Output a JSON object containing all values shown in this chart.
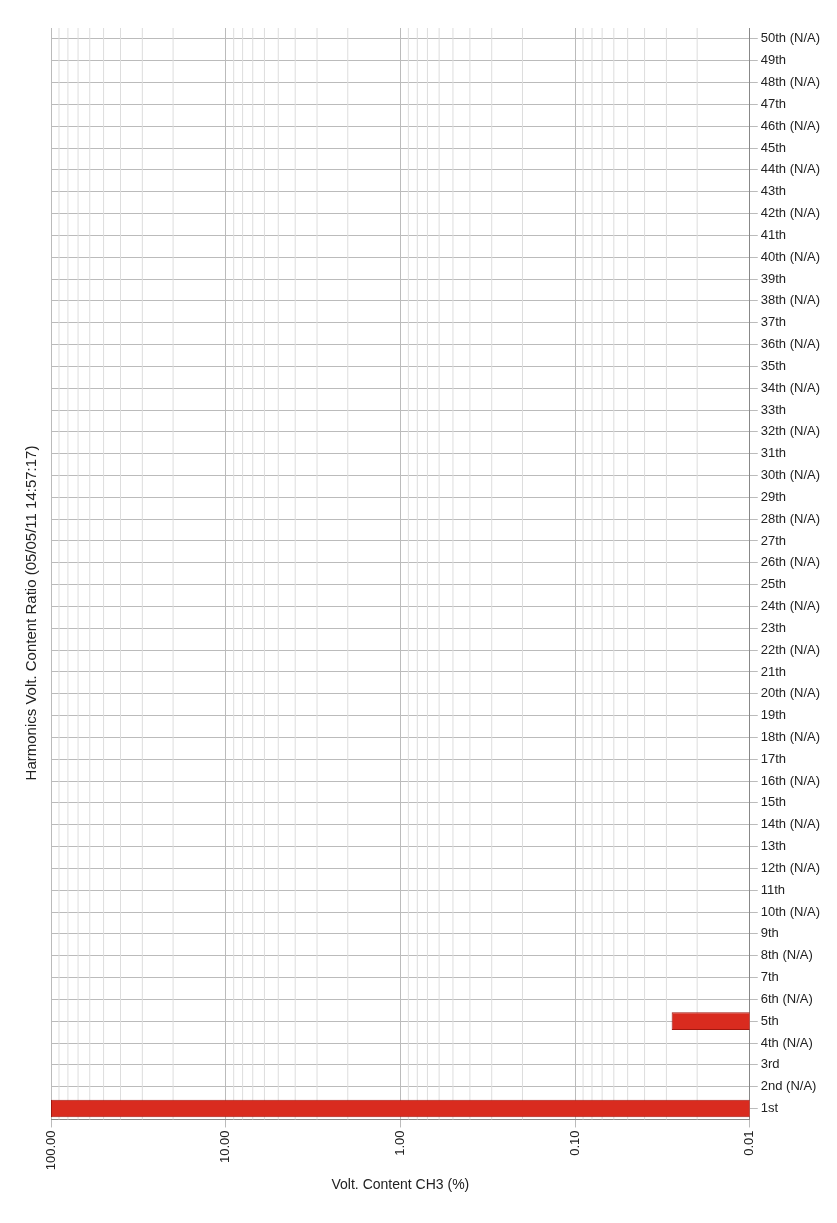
{
  "chart_data": {
    "type": "bar",
    "orientation": "horizontal",
    "title": "Harmonics Volt. Content Ratio (05/05/11 14:57:17)",
    "xlabel": "Volt. Content CH3 (%)",
    "categories": [
      "50th (N/A)",
      "49th",
      "48th (N/A)",
      "47th",
      "46th (N/A)",
      "45th",
      "44th (N/A)",
      "43th",
      "42th (N/A)",
      "41th",
      "40th (N/A)",
      "39th",
      "38th (N/A)",
      "37th",
      "36th (N/A)",
      "35th",
      "34th (N/A)",
      "33th",
      "32th (N/A)",
      "31th",
      "30th (N/A)",
      "29th",
      "28th (N/A)",
      "27th",
      "26th (N/A)",
      "25th",
      "24th (N/A)",
      "23th",
      "22th (N/A)",
      "21th",
      "20th (N/A)",
      "19th",
      "18th (N/A)",
      "17th",
      "16th (N/A)",
      "15th",
      "14th (N/A)",
      "13th",
      "12th (N/A)",
      "11th",
      "10th (N/A)",
      "9th",
      "8th (N/A)",
      "7th",
      "6th (N/A)",
      "5th",
      "4th (N/A)",
      "3rd",
      "2nd (N/A)",
      "1st"
    ],
    "values": [
      null,
      null,
      null,
      null,
      null,
      null,
      null,
      null,
      null,
      null,
      null,
      null,
      null,
      null,
      null,
      null,
      null,
      null,
      null,
      null,
      null,
      null,
      null,
      null,
      null,
      null,
      null,
      null,
      null,
      null,
      null,
      null,
      null,
      null,
      null,
      null,
      null,
      null,
      null,
      null,
      null,
      null,
      null,
      null,
      null,
      0.028,
      null,
      null,
      null,
      100
    ],
    "color": "#d92b1f",
    "log": "x",
    "xlim": [
      100,
      0.01
    ],
    "xticks": [
      {
        "value": 100,
        "label": "100.00"
      },
      {
        "value": 10,
        "label": "10.00"
      },
      {
        "value": 1,
        "label": "1.00"
      },
      {
        "value": 0.1,
        "label": "0.10"
      },
      {
        "value": 0.01,
        "label": "0.01"
      }
    ],
    "grid": true,
    "legend": false
  }
}
